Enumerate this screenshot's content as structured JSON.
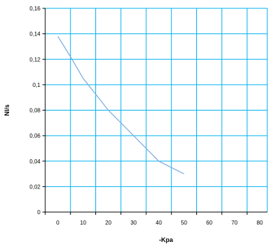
{
  "chart_data": {
    "type": "line",
    "title": "",
    "xlabel": "-Kpa",
    "ylabel": "Nl/s",
    "x_ticks": [
      "0",
      "10",
      "20",
      "30",
      "40",
      "50",
      "60",
      "70",
      "80"
    ],
    "y_ticks": [
      "0",
      "0,02",
      "0,04",
      "0,06",
      "0,08",
      "0,1",
      "0,12",
      "0,14",
      "0,16"
    ],
    "xlim": [
      -5,
      83
    ],
    "ylim": [
      0,
      0.16
    ],
    "grid": true,
    "legend": "none",
    "series": [
      {
        "x": [
          0,
          5,
          10,
          20,
          30,
          40,
          50
        ],
        "values": [
          0.138,
          0.122,
          0.105,
          0.08,
          0.06,
          0.04,
          0.03
        ]
      }
    ]
  },
  "colors": {
    "grid": "#00b0f0",
    "axis": "#000000",
    "series": "#7fb0e0",
    "background": "#ffffff"
  }
}
